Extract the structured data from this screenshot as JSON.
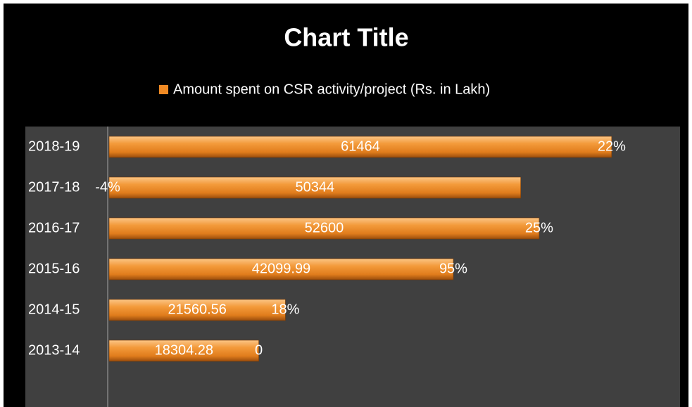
{
  "chart_data": {
    "type": "bar",
    "orientation": "horizontal",
    "title": "Chart Title",
    "categories": [
      "2018-19",
      "2017-18",
      "2016-17",
      "2015-16",
      "2014-15",
      "2013-14"
    ],
    "series": [
      {
        "name": "Amount spent on CSR activity/project (Rs. in Lakh)",
        "color": "#f08a24",
        "values": [
          61464,
          50344,
          52600,
          42099.99,
          21560.56,
          18304.28
        ]
      }
    ],
    "growth": {
      "values": [
        22,
        -4,
        25,
        95,
        18,
        0
      ],
      "value_labels": [
        "22%",
        "-4%",
        "25%",
        "95%",
        "18%",
        "0"
      ]
    },
    "xlim": [
      0,
      70000
    ],
    "legend": "top",
    "grid": false
  }
}
